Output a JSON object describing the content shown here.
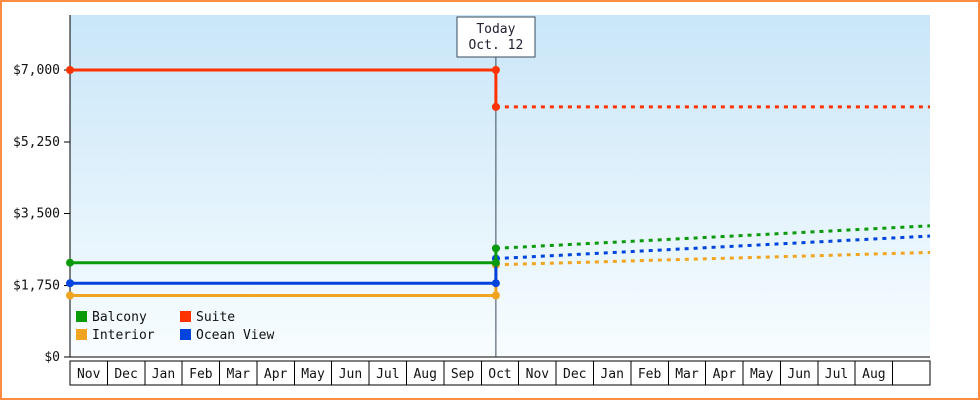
{
  "chart_data": {
    "type": "line",
    "title": "",
    "xlabel": "",
    "ylabel": "",
    "ylim": [
      0,
      8350
    ],
    "yticks": [
      0,
      1750,
      3500,
      5250,
      7000
    ],
    "ytick_labels": [
      "$0",
      "$1,750",
      "$3,500",
      "$5,250",
      "$7,000"
    ],
    "x_categories": [
      "Nov",
      "Dec",
      "Jan",
      "Feb",
      "Mar",
      "Apr",
      "May",
      "Jun",
      "Jul",
      "Aug",
      "Sep",
      "Oct",
      "Nov",
      "Dec",
      "Jan",
      "Feb",
      "Mar",
      "Apr",
      "May",
      "Jun",
      "Jul",
      "Aug",
      ""
    ],
    "today": {
      "index": 11,
      "day_fraction": 0.39,
      "label_line1": "Today",
      "label_line2": "Oct. 12"
    },
    "series": [
      {
        "name": "Suite",
        "color": "#ff3300",
        "past_value": 7000,
        "today_value": 6100,
        "future_end_value": 6100
      },
      {
        "name": "Balcony",
        "color": "#0a9a0a",
        "past_value": 2300,
        "today_value": 2650,
        "future_end_value": 3200
      },
      {
        "name": "Ocean View",
        "color": "#0044dd",
        "past_value": 1800,
        "today_value": 2400,
        "future_end_value": 2950
      },
      {
        "name": "Interior",
        "color": "#f0a420",
        "past_value": 1500,
        "today_value": 2250,
        "future_end_value": 2550
      }
    ],
    "legend": {
      "position": "bottom-left-inside",
      "rows": [
        [
          "Balcony",
          "Suite"
        ],
        [
          "Interior",
          "Ocean View"
        ]
      ]
    },
    "line_style": {
      "past": "solid",
      "future": "dotted"
    },
    "colors": {
      "frame_border": "#ff8c42",
      "plot_bg_top": "#c9e6f8",
      "plot_bg_bottom": "#f8fdff",
      "axis": "#000000",
      "tick_text": "#111111",
      "today_line": "#3a4a5e",
      "today_text": "#222233",
      "month_cell_bg": "#ffffff",
      "month_cell_border": "#000000"
    }
  }
}
